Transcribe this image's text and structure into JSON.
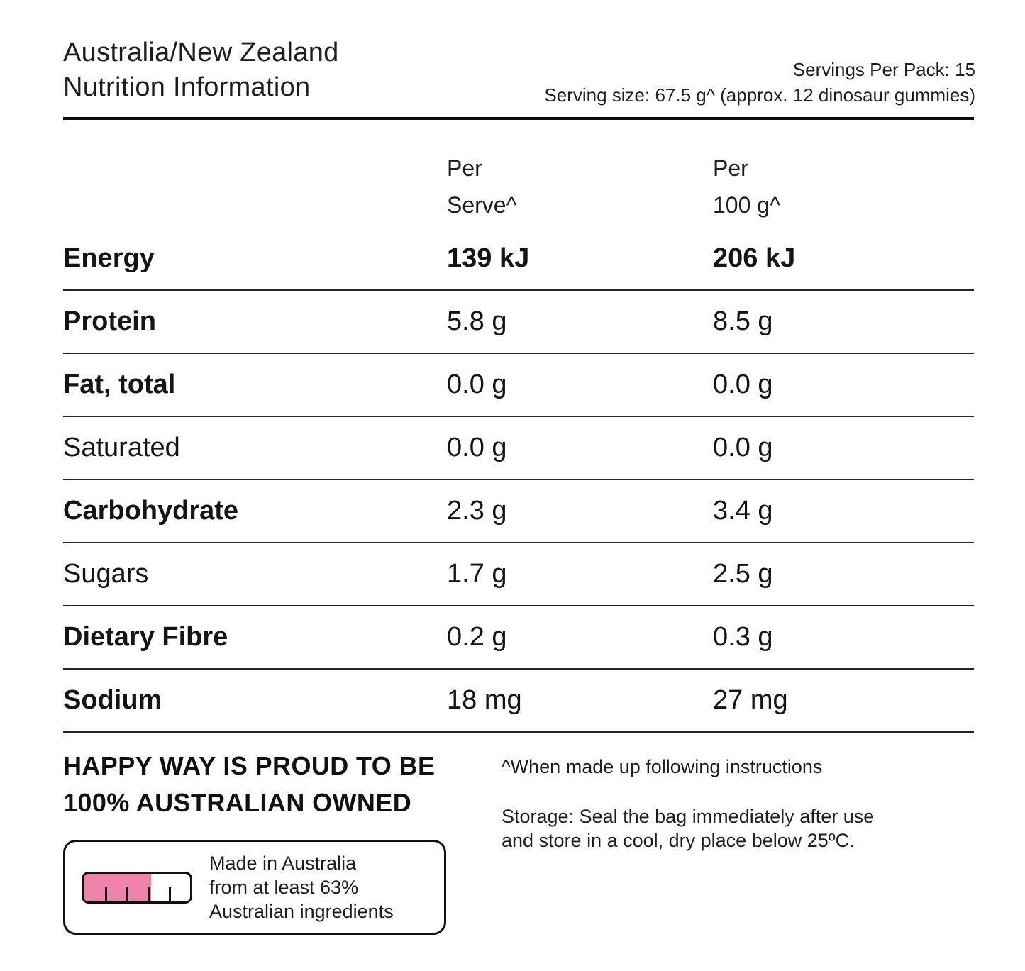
{
  "header": {
    "title_line1": "Australia/New Zealand",
    "title_line2": "Nutrition Information",
    "servings_per_pack": "Servings Per Pack: 15",
    "serving_size": "Serving size: 67.5 g^ (approx. 12 dinosaur gummies)"
  },
  "table": {
    "col_per_serve": {
      "line1": "Per",
      "line2": "Serve^"
    },
    "col_per_100g": {
      "line1": "Per",
      "line2": "100 g^"
    },
    "rows": [
      {
        "label": "Energy",
        "per_serve": "139 kJ",
        "per_100g": "206 kJ"
      },
      {
        "label": "Protein",
        "per_serve": "5.8 g",
        "per_100g": "8.5 g"
      },
      {
        "label": "Fat, total",
        "per_serve": "0.0 g",
        "per_100g": "0.0 g"
      },
      {
        "label": "Saturated",
        "per_serve": "0.0 g",
        "per_100g": "0.0 g"
      },
      {
        "label": "Carbohydrate",
        "per_serve": "2.3 g",
        "per_100g": "3.4 g"
      },
      {
        "label": "Sugars",
        "per_serve": "1.7 g",
        "per_100g": "2.5 g"
      },
      {
        "label": "Dietary Fibre",
        "per_serve": "0.2 g",
        "per_100g": "0.3 g"
      },
      {
        "label": "Sodium",
        "per_serve": "18 mg",
        "per_100g": "27 mg"
      }
    ]
  },
  "footer": {
    "owned_line1": "HAPPY WAY IS PROUD TO BE",
    "owned_line2": "100% AUSTRALIAN OWNED",
    "note": "^When made up following instructions",
    "storage_line1": "Storage: Seal the bag immediately after use",
    "storage_line2": "and store in a cool, dry place below 25ºC.",
    "made_in": {
      "line1": "Made in Australia",
      "line2": "from at least 63%",
      "line3": "Australian ingredients",
      "bar_fill_percent": 63
    }
  },
  "colors": {
    "pink": "#f083ac",
    "text": "#1a1a1a"
  }
}
